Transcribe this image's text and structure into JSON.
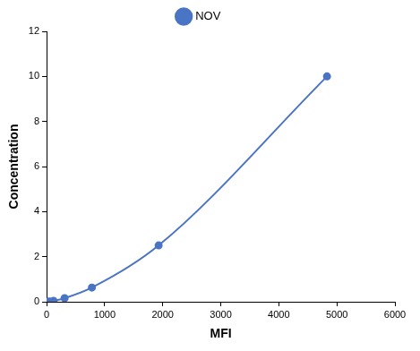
{
  "chart_data": {
    "type": "line",
    "x_label": "MFI",
    "y_label": "Concentration",
    "x": [
      20,
      50,
      120,
      310,
      780,
      1930,
      4830
    ],
    "series": [
      {
        "name": "NOV",
        "color": "#4a74c4",
        "marker": "circle",
        "line_style": "solid",
        "values": [
          0,
          0.01,
          0.04,
          0.16,
          0.63,
          2.5,
          10
        ]
      }
    ],
    "xlim": [
      0,
      6000
    ],
    "xticks": [
      0,
      1000,
      2000,
      3000,
      4000,
      5000,
      6000
    ],
    "ylim": [
      0,
      12
    ],
    "yticks": [
      0,
      2,
      4,
      6,
      8,
      10,
      12
    ],
    "grid": false,
    "legend": "top"
  }
}
